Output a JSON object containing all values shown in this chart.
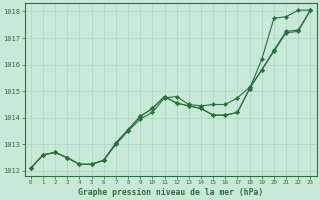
{
  "title": "Graphe pression niveau de la mer (hPa)",
  "bg_color": "#c8e8d8",
  "grid_color": "#aad4c8",
  "line_color": "#2d6e3e",
  "marker_color": "#2d6e3e",
  "xlim": [
    -0.5,
    23.5
  ],
  "ylim": [
    1011.8,
    1018.3
  ],
  "yticks": [
    1012,
    1013,
    1014,
    1015,
    1016,
    1017,
    1018
  ],
  "xticks": [
    0,
    1,
    2,
    3,
    4,
    5,
    6,
    7,
    8,
    9,
    10,
    11,
    12,
    13,
    14,
    15,
    16,
    17,
    18,
    19,
    20,
    21,
    22,
    23
  ],
  "series": [
    {
      "x": [
        0,
        1,
        2,
        3,
        4,
        5,
        6,
        7,
        8,
        9,
        10,
        11,
        12,
        13,
        14,
        15,
        16,
        17,
        18,
        19,
        20,
        21,
        22,
        23
      ],
      "y": [
        1012.1,
        1012.6,
        1012.7,
        1012.5,
        1012.25,
        1012.25,
        1012.4,
        1013.0,
        1013.5,
        1013.95,
        1014.2,
        1014.75,
        1014.8,
        1014.5,
        1014.45,
        1014.5,
        1014.5,
        1014.75,
        1015.15,
        1015.8,
        1016.55,
        1017.25,
        1017.3,
        1018.05
      ]
    },
    {
      "x": [
        0,
        1,
        2,
        3,
        4,
        5,
        6,
        7,
        8,
        9,
        10,
        11,
        12,
        13,
        14,
        15,
        16,
        17,
        18,
        19,
        20,
        21,
        22,
        23
      ],
      "y": [
        1012.1,
        1012.6,
        1012.7,
        1012.5,
        1012.25,
        1012.25,
        1012.4,
        1013.05,
        1013.55,
        1014.05,
        1014.35,
        1014.8,
        1014.55,
        1014.45,
        1014.35,
        1014.1,
        1014.1,
        1014.2,
        1015.1,
        1015.8,
        1016.5,
        1017.2,
        1017.25,
        1018.05
      ]
    },
    {
      "x": [
        0,
        1,
        2,
        3,
        4,
        5,
        6,
        7,
        8,
        9,
        10,
        11,
        12,
        13,
        14,
        15,
        16,
        17,
        18,
        19,
        20,
        21,
        22,
        23
      ],
      "y": [
        1012.1,
        1012.6,
        1012.7,
        1012.5,
        1012.25,
        1012.25,
        1012.4,
        1013.05,
        1013.55,
        1014.05,
        1014.35,
        1014.8,
        1014.55,
        1014.45,
        1014.35,
        1014.1,
        1014.1,
        1014.2,
        1015.1,
        1016.2,
        1017.75,
        1017.8,
        1018.05,
        1018.05
      ]
    }
  ]
}
